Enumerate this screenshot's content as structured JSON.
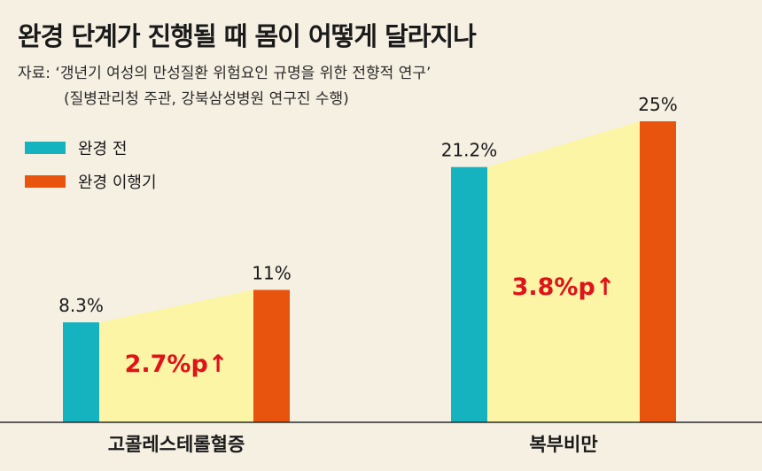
{
  "header": {
    "title": "완경 단계가 진행될 때 몸이 어떻게 달라지나",
    "source_line1": "자료: ‘갱년기 여성의 만성질환 위험요인 규명을 위한 전향적 연구’",
    "source_line2": "(질병관리청 주관, 강북삼성병원 연구진 수행)"
  },
  "colors": {
    "before": "#14b3bf",
    "after": "#e8530d",
    "band": "#fbf5a5",
    "increase": "#e0121a",
    "background": "#f6f0e3"
  },
  "chart_data": {
    "type": "bar",
    "categories": [
      "고콜레스테롤혈증",
      "복부비만"
    ],
    "series": [
      {
        "name": "완경 전",
        "values": [
          8.3,
          21.2
        ],
        "labels": [
          "8.3%",
          "21.2%"
        ],
        "color": "#14b3bf"
      },
      {
        "name": "완경 이행기",
        "values": [
          11,
          25
        ],
        "labels": [
          "11%",
          "25%"
        ],
        "color": "#e8530d"
      }
    ],
    "annotations": [
      "2.7%p↑",
      "3.8%p↑"
    ],
    "ylim": [
      0,
      27.5
    ],
    "legend": "top-left",
    "grid": false
  }
}
